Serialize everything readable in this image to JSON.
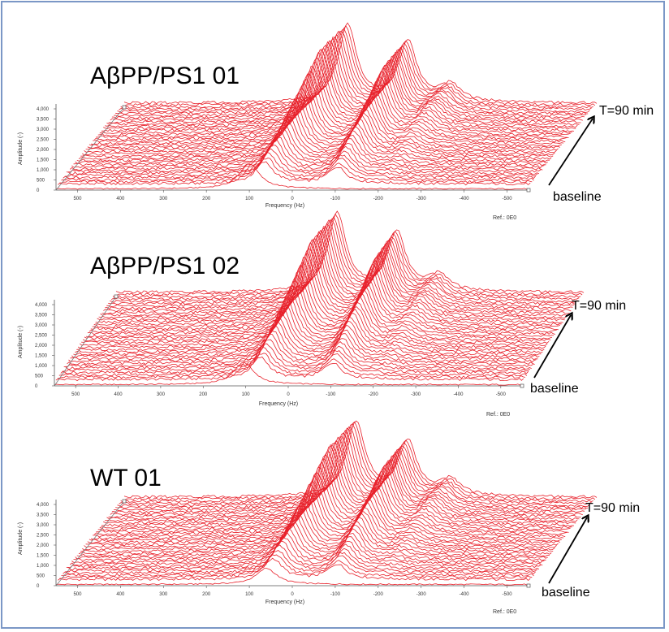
{
  "chart_data": [
    {
      "type": "waterfall",
      "title": "AβPP/PS1 01",
      "xlabel": "Frequency (Hz)",
      "ylabel": "Amplitude (-)",
      "x_ticks": [
        "500",
        "400",
        "300",
        "200",
        "100",
        "0",
        "-100",
        "-200",
        "-300",
        "-400",
        "-500"
      ],
      "y_ticks": [
        "4,000",
        "3,500",
        "3,000",
        "2,500",
        "2,000",
        "1,500",
        "1,000",
        "500",
        "0"
      ],
      "ref": "Ref.: 0E0",
      "depth_top_label": "T=90 min",
      "depth_bottom_label": "baseline",
      "peaks": [
        {
          "x": 30,
          "height": 4000
        },
        {
          "x": -110,
          "height": 3150
        },
        {
          "x": -210,
          "height": 850
        }
      ],
      "baseline_peak": {
        "x": 100,
        "height": 1250
      },
      "n_traces": 40
    },
    {
      "type": "waterfall",
      "title": "AβPP/PS1 02",
      "xlabel": "Frequency (Hz)",
      "ylabel": "Amplitude (-)",
      "x_ticks": [
        "500",
        "400",
        "300",
        "200",
        "100",
        "0",
        "-100",
        "-200",
        "-300",
        "-400",
        "-500"
      ],
      "y_ticks": [
        "4,000",
        "3,500",
        "3,000",
        "2,500",
        "2,000",
        "1,500",
        "1,000",
        "500",
        "0"
      ],
      "ref": "Ref.: 0E0",
      "depth_top_label": "T=90 min",
      "depth_bottom_label": "baseline",
      "peaks": [
        {
          "x": 30,
          "height": 4050
        },
        {
          "x": -110,
          "height": 3100
        },
        {
          "x": -210,
          "height": 800
        }
      ],
      "baseline_peak": {
        "x": 105,
        "height": 1100
      },
      "n_traces": 40
    },
    {
      "type": "waterfall",
      "title": "WT 01",
      "xlabel": "Frequency (Hz)",
      "ylabel": "Amplitude (-)",
      "x_ticks": [
        "500",
        "400",
        "300",
        "200",
        "100",
        "0",
        "-100",
        "-200",
        "-300",
        "-400",
        "-500"
      ],
      "y_ticks": [
        "4,000",
        "3,500",
        "3,000",
        "2,500",
        "2,000",
        "1,500",
        "1,000",
        "500",
        "0"
      ],
      "ref": "Ref.: 0E0",
      "depth_top_label": "T=90 min",
      "depth_bottom_label": "baseline",
      "peaks": [
        {
          "x": 10,
          "height": 3850
        },
        {
          "x": -110,
          "height": 2850
        },
        {
          "x": -210,
          "height": 800
        }
      ],
      "baseline_peak": {
        "x": 60,
        "height": 800
      },
      "n_traces": 40
    }
  ]
}
